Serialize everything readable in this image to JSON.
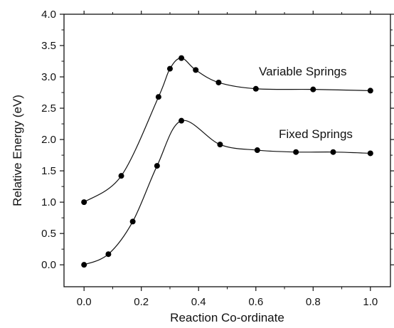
{
  "chart_data": {
    "type": "line",
    "title": "",
    "xlabel": "Reaction Co-ordinate",
    "ylabel": "Relative Energy  (eV)",
    "xlim": [
      -0.07,
      1.07
    ],
    "ylim": [
      -0.35,
      4.0
    ],
    "x_ticks": [
      "0.0",
      "0.2",
      "0.4",
      "0.6",
      "0.8",
      "1.0"
    ],
    "y_ticks": [
      "0.0",
      "0.5",
      "1.0",
      "1.5",
      "2.0",
      "2.5",
      "3.0",
      "3.5",
      "4.0"
    ],
    "grid": false,
    "series": [
      {
        "name": "Variable Springs",
        "x": [
          0.0,
          0.13,
          0.26,
          0.3,
          0.34,
          0.39,
          0.47,
          0.6,
          0.8,
          1.0
        ],
        "y": [
          1.0,
          1.42,
          2.68,
          3.13,
          3.3,
          3.11,
          2.91,
          2.81,
          2.8,
          2.78
        ]
      },
      {
        "name": "Fixed Springs",
        "x": [
          0.0,
          0.085,
          0.17,
          0.255,
          0.34,
          0.475,
          0.605,
          0.74,
          0.87,
          1.0
        ],
        "y": [
          0.0,
          0.17,
          0.69,
          1.58,
          2.3,
          1.92,
          1.83,
          1.8,
          1.8,
          1.78
        ]
      }
    ],
    "annotations": [
      {
        "text": "Variable Springs",
        "series": 0
      },
      {
        "text": "Fixed Springs",
        "series": 1
      }
    ]
  }
}
